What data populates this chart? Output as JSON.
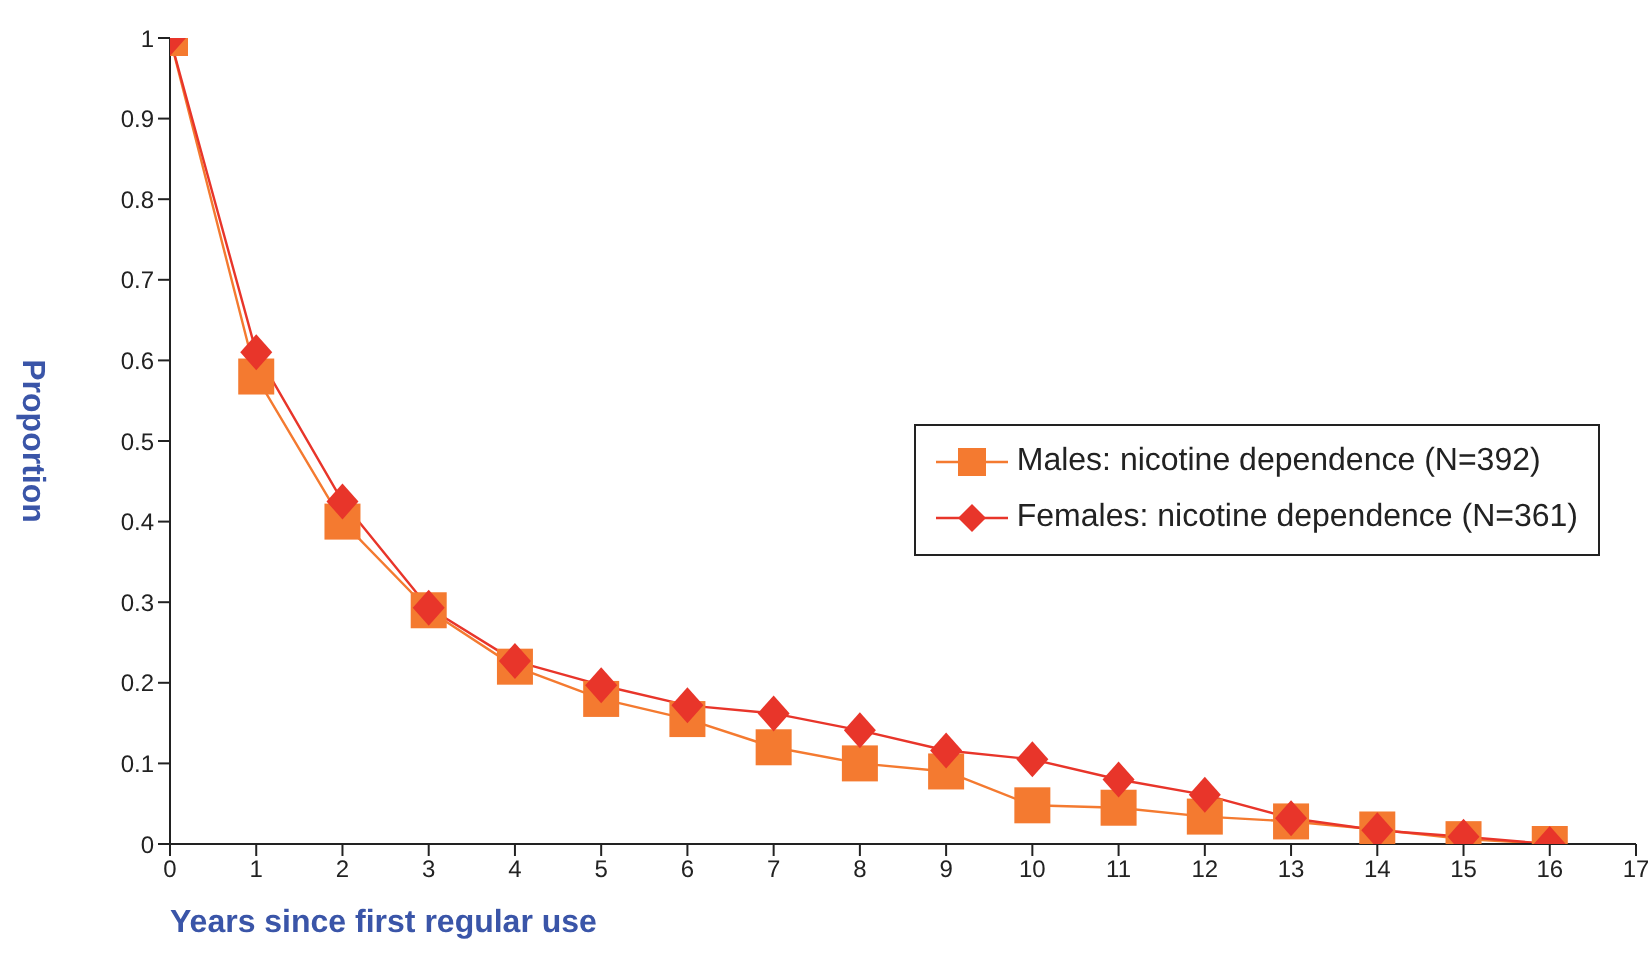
{
  "chart_data": {
    "type": "line",
    "xlabel": "Years since first regular use",
    "ylabel": "Proportion",
    "x": [
      0,
      1,
      2,
      3,
      4,
      5,
      6,
      7,
      8,
      9,
      10,
      11,
      12,
      13,
      14,
      15,
      16
    ],
    "series": [
      {
        "name": "Males: nicotine dependence (N=392)",
        "color": "#f47a30",
        "marker": "square",
        "values": [
          1,
          0.58,
          0.4,
          0.29,
          0.22,
          0.18,
          0.155,
          0.12,
          0.1,
          0.09,
          0.048,
          0.045,
          0.034,
          0.028,
          0.018,
          0.006,
          0
        ]
      },
      {
        "name": "Females: nicotine dependence (N=361)",
        "color": "#e8352a",
        "marker": "diamond",
        "values": [
          1,
          0.61,
          0.425,
          0.293,
          0.227,
          0.197,
          0.172,
          0.162,
          0.141,
          0.116,
          0.105,
          0.08,
          0.061,
          0.032,
          0.017,
          0.009,
          0
        ]
      }
    ],
    "xlim": [
      0,
      17
    ],
    "xticks": [
      0,
      1,
      2,
      3,
      4,
      5,
      6,
      7,
      8,
      9,
      10,
      11,
      12,
      13,
      14,
      15,
      16,
      17
    ],
    "ylim": [
      0,
      1
    ],
    "yticks": [
      0,
      0.1,
      0.2,
      0.3,
      0.4,
      0.5,
      0.6,
      0.7,
      0.8,
      0.9,
      1
    ],
    "grid": false,
    "legend": "right"
  }
}
